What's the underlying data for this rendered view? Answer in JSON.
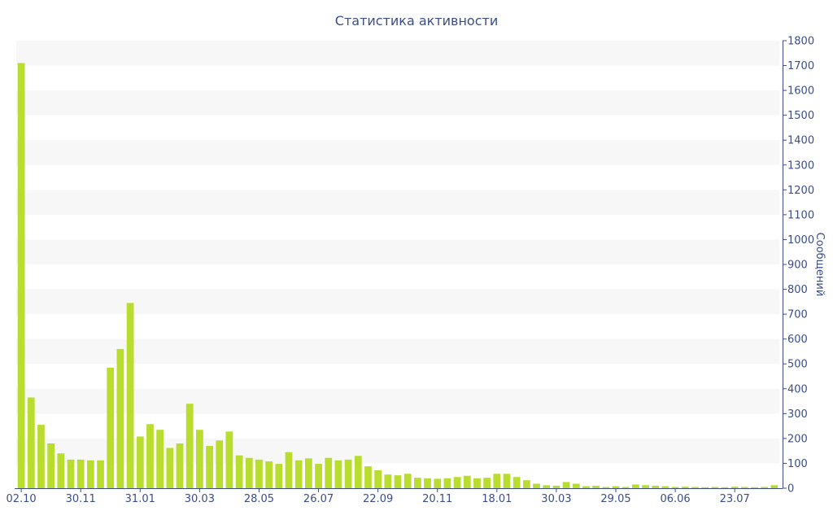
{
  "chart_data": {
    "type": "bar",
    "title": "Статистика активности",
    "ylabel": "Сообщений",
    "ylim": [
      0,
      1800
    ],
    "y_ticks": [
      0,
      100,
      200,
      300,
      400,
      500,
      600,
      700,
      800,
      900,
      1000,
      1100,
      1200,
      1300,
      1400,
      1500,
      1600,
      1700,
      1800
    ],
    "y_axis_position": "right",
    "grid": "alternating horizontal bands",
    "legend": "none",
    "colors": {
      "bar": "#b9dd2f",
      "band": "#f7f7f7",
      "axis": "#3c4d8a",
      "text": "#3c4d8a"
    },
    "x_tick_labels": [
      {
        "label": "02.10",
        "index": 0
      },
      {
        "label": "30.11",
        "index": 6
      },
      {
        "label": "31.01",
        "index": 12
      },
      {
        "label": "30.03",
        "index": 18
      },
      {
        "label": "28.05",
        "index": 24
      },
      {
        "label": "26.07",
        "index": 30
      },
      {
        "label": "22.09",
        "index": 36
      },
      {
        "label": "20.11",
        "index": 42
      },
      {
        "label": "18.01",
        "index": 48
      },
      {
        "label": "30.03",
        "index": 54
      },
      {
        "label": "29.05",
        "index": 60
      },
      {
        "label": "06.06",
        "index": 66
      },
      {
        "label": "23.07",
        "index": 72
      }
    ],
    "values": [
      1710,
      365,
      255,
      180,
      140,
      115,
      115,
      112,
      112,
      485,
      560,
      745,
      208,
      258,
      235,
      162,
      180,
      340,
      235,
      170,
      192,
      228,
      132,
      122,
      115,
      108,
      98,
      145,
      112,
      120,
      98,
      122,
      112,
      115,
      130,
      88,
      72,
      55,
      52,
      58,
      42,
      40,
      38,
      40,
      45,
      50,
      40,
      42,
      58,
      58,
      45,
      32,
      18,
      12,
      10,
      25,
      18,
      8,
      10,
      5,
      8,
      5,
      15,
      12,
      10,
      8,
      5,
      6,
      5,
      4,
      5,
      4,
      6,
      5,
      4,
      5,
      12
    ]
  }
}
